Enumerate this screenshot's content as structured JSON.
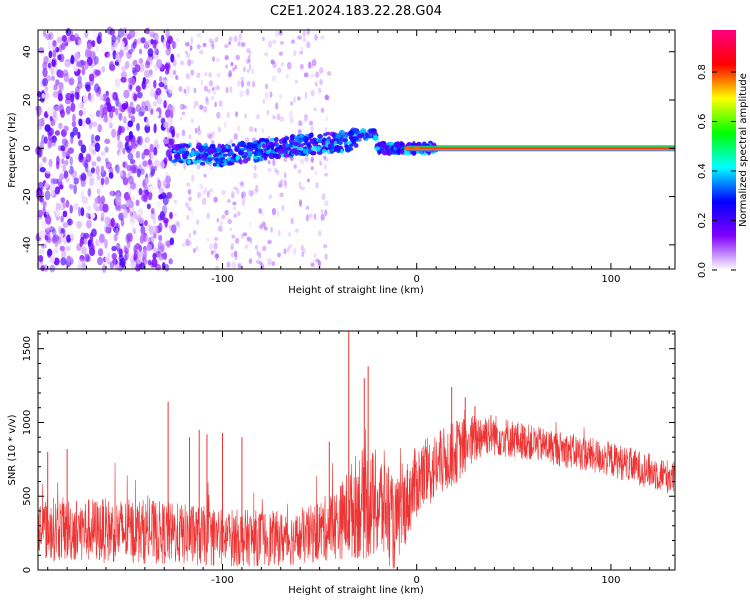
{
  "title": "C2E1.2024.183.22.28.G04",
  "chart_data": [
    {
      "type": "heatmap",
      "title": "C2E1.2024.183.22.28.G04",
      "xlabel": "Height of straight line (km)",
      "ylabel": "Frequency (Hz)",
      "xlim": [
        -195,
        133
      ],
      "ylim": [
        -50,
        49
      ],
      "x_ticks": [
        -100,
        0,
        100
      ],
      "y_ticks": [
        -40,
        -20,
        0,
        20,
        40
      ],
      "colorbar": {
        "label": "Normalized spectral amplitude",
        "range": [
          0,
          0.97
        ],
        "ticks": [
          0.0,
          0.2,
          0.4,
          0.6,
          0.8
        ],
        "colormap": "rainbow",
        "colors": [
          "#ffffff",
          "#8000ff",
          "#0000ff",
          "#00ffff",
          "#00ff00",
          "#ffff00",
          "#ff0000",
          "#ff0080"
        ]
      },
      "features": {
        "noise_region_x": [
          -195,
          -125
        ],
        "scattered_noise_x": [
          -125,
          -45
        ],
        "track": [
          {
            "x": -125,
            "y": -2
          },
          {
            "x": -100,
            "y": -3
          },
          {
            "x": -75,
            "y": 0
          },
          {
            "x": -50,
            "y": 2
          },
          {
            "x": -35,
            "y": 3
          },
          {
            "x": -22,
            "y": 7
          },
          {
            "x": -20,
            "y": 0
          },
          {
            "x": 0,
            "y": 0
          },
          {
            "x": 10,
            "y": 0
          },
          {
            "x": 133,
            "y": 0
          }
        ],
        "main_line_y": 0
      }
    },
    {
      "type": "line",
      "xlabel": "Height of straight line (km)",
      "ylabel": "SNR (10 * v/v)",
      "xlim": [
        -195,
        133
      ],
      "ylim": [
        0,
        1620
      ],
      "x_ticks": [
        -100,
        0,
        100
      ],
      "y_ticks": [
        0,
        500,
        1000,
        1500
      ],
      "color": "#ee3333",
      "envelope": [
        {
          "x": -195,
          "base": 280,
          "amp": 220
        },
        {
          "x": -140,
          "base": 260,
          "amp": 220
        },
        {
          "x": -100,
          "base": 220,
          "amp": 200
        },
        {
          "x": -60,
          "base": 210,
          "amp": 180
        },
        {
          "x": -40,
          "base": 320,
          "amp": 250
        },
        {
          "x": -30,
          "base": 450,
          "amp": 380
        },
        {
          "x": -15,
          "base": 430,
          "amp": 380
        },
        {
          "x": -12,
          "base": 280,
          "amp": 300
        },
        {
          "x": 0,
          "base": 600,
          "amp": 250
        },
        {
          "x": 20,
          "base": 800,
          "amp": 220
        },
        {
          "x": 35,
          "base": 930,
          "amp": 150
        },
        {
          "x": 60,
          "base": 860,
          "amp": 120
        },
        {
          "x": 100,
          "base": 750,
          "amp": 120
        },
        {
          "x": 133,
          "base": 620,
          "amp": 120
        }
      ],
      "spikes": [
        {
          "x": -35,
          "y": 1620
        },
        {
          "x": -25,
          "y": 1380
        },
        {
          "x": -27,
          "y": 1300
        },
        {
          "x": -128,
          "y": 1140
        },
        {
          "x": -117,
          "y": 900
        },
        {
          "x": -112,
          "y": 950
        },
        {
          "x": -108,
          "y": 920
        },
        {
          "x": -100,
          "y": 930
        },
        {
          "x": -90,
          "y": 900
        },
        {
          "x": -180,
          "y": 820
        },
        {
          "x": -190,
          "y": 800
        },
        {
          "x": -45,
          "y": 870
        },
        {
          "x": 18,
          "y": 1240
        },
        {
          "x": 25,
          "y": 1170
        },
        {
          "x": 30,
          "y": 1110
        }
      ]
    }
  ]
}
